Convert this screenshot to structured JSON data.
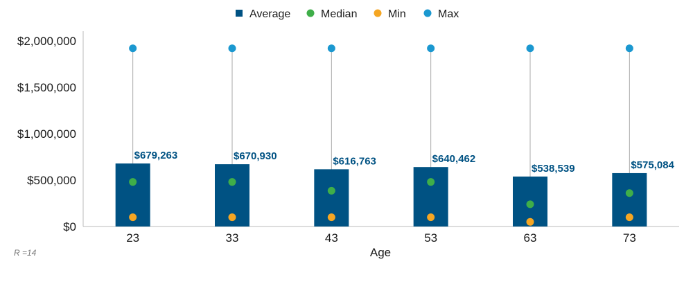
{
  "chart_data": {
    "type": "bar",
    "categories": [
      "23",
      "33",
      "43",
      "53",
      "63",
      "73"
    ],
    "series": [
      {
        "name": "Average",
        "values": [
          679263,
          670930,
          616763,
          640462,
          538539,
          575084
        ]
      },
      {
        "name": "Median",
        "values": [
          480000,
          480000,
          385000,
          480000,
          240000,
          360000
        ]
      },
      {
        "name": "Min",
        "values": [
          100000,
          100000,
          100000,
          100000,
          50000,
          100000
        ]
      },
      {
        "name": "Max",
        "values": [
          1920000,
          1920000,
          1920000,
          1920000,
          1920000,
          1920000
        ]
      }
    ],
    "data_labels": [
      "$679,263",
      "$670,930",
      "$616,763",
      "$640,462",
      "$538,539",
      "$575,084"
    ],
    "xlabel": "Age",
    "ylabel": "",
    "ylim": [
      0,
      2000000
    ],
    "yticks": [
      0,
      500000,
      1000000,
      1500000,
      2000000
    ],
    "ytick_labels": [
      "$0",
      "$500,000",
      "$1,000,000",
      "$1,500,000",
      "$2,000,000"
    ],
    "legend_position": "top-center",
    "grid": false,
    "note": "R =14",
    "colors": {
      "Average": "#005283",
      "Median": "#3fae49",
      "Min": "#f5a623",
      "Max": "#1b98d0",
      "label": "#005283",
      "whisker": "#aaaaaa"
    }
  }
}
